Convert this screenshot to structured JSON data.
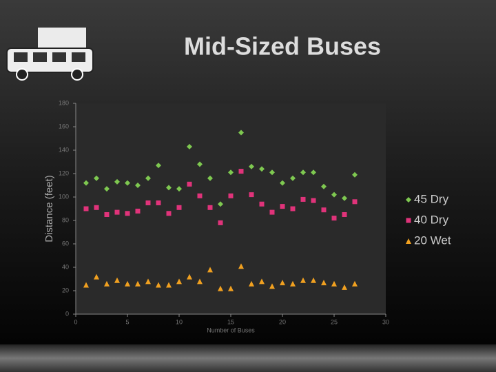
{
  "chart_data": {
    "type": "scatter",
    "title": "Mid-Sized Buses",
    "x_label": "Number of Buses",
    "y_label": "Distance (feet)",
    "x": [
      1,
      2,
      3,
      4,
      5,
      6,
      7,
      8,
      9,
      10,
      11,
      12,
      13,
      14,
      15,
      16,
      17,
      18,
      19,
      20,
      21,
      22,
      23,
      24,
      25,
      26,
      27
    ],
    "series": [
      {
        "name": "45 Dry",
        "color": "#7ec850",
        "marker": "diamond",
        "values": [
          112,
          116,
          107,
          113,
          112,
          110,
          116,
          127,
          108,
          107,
          143,
          128,
          116,
          94,
          121,
          155,
          126,
          124,
          121,
          112,
          116,
          121,
          121,
          109,
          102,
          99,
          119
        ]
      },
      {
        "name": "40 Dry",
        "color": "#e0337a",
        "marker": "square",
        "values": [
          90,
          91,
          85,
          87,
          86,
          88,
          95,
          95,
          86,
          91,
          111,
          101,
          91,
          78,
          101,
          122,
          102,
          94,
          87,
          92,
          90,
          98,
          97,
          89,
          82,
          85,
          96
        ]
      },
      {
        "name": "20 Wet",
        "color": "#f0a020",
        "marker": "triangle",
        "values": [
          25,
          32,
          26,
          29,
          26,
          26,
          28,
          25,
          25,
          28,
          32,
          28,
          38,
          22,
          22,
          41,
          26,
          28,
          24,
          27,
          26,
          29,
          29,
          27,
          26,
          23,
          26
        ]
      }
    ],
    "xlim": [
      0,
      30
    ],
    "xticks": [
      0,
      5,
      10,
      15,
      20,
      25,
      30
    ],
    "ylim": [
      0,
      180
    ],
    "yticks": [
      0,
      20,
      40,
      60,
      80,
      100,
      120,
      140,
      160,
      180
    ],
    "legend": "right"
  }
}
